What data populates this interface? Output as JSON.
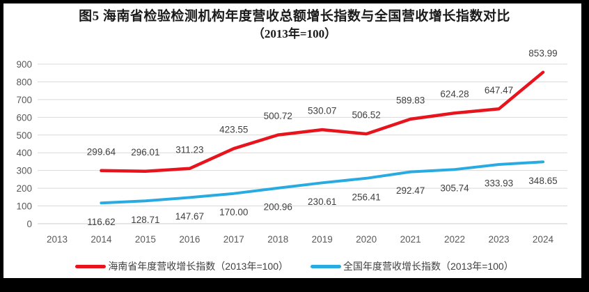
{
  "frame": {
    "border_color": "#000000",
    "chart_background": "#ffffff"
  },
  "title": {
    "line1": "图5  海南省检验检测机构年度营收总额增长指数与全国营收增长指数对比",
    "line2": "（2013年=100）"
  },
  "chart_data": {
    "type": "line",
    "title": "图5 海南省检验检测机构年度营收总额增长指数与全国营收增长指数对比（2013年=100）",
    "categories": [
      "2013",
      "2014",
      "2015",
      "2016",
      "2017",
      "2018",
      "2019",
      "2020",
      "2021",
      "2022",
      "2023",
      "2024"
    ],
    "series": [
      {
        "name": "海南省年度营收增长指数（2013年=100）",
        "color": "#e8141d",
        "stroke_width": 4.5,
        "label_position": "above",
        "years": [
          "2014",
          "2015",
          "2016",
          "2017",
          "2018",
          "2019",
          "2020",
          "2021",
          "2022",
          "2023",
          "2024"
        ],
        "values": [
          299.64,
          296.01,
          311.23,
          423.55,
          500.72,
          530.07,
          506.52,
          589.83,
          624.28,
          647.47,
          853.99
        ]
      },
      {
        "name": "全国年度营收增长指数（2013年=100）",
        "color": "#29abe2",
        "stroke_width": 4,
        "label_position": "below",
        "years": [
          "2014",
          "2015",
          "2016",
          "2017",
          "2018",
          "2019",
          "2020",
          "2021",
          "2022",
          "2023",
          "2024"
        ],
        "values": [
          116.62,
          128.71,
          147.67,
          170.0,
          200.96,
          230.61,
          256.41,
          292.47,
          305.74,
          333.93,
          348.65
        ]
      }
    ],
    "xlabel": "",
    "ylabel": "",
    "ylim": [
      0,
      900
    ],
    "ytick_step": 100,
    "grid": "horizontal",
    "gridline_color": "#d9d9d9",
    "axis_label_color": "#595959",
    "data_label_color": "#404040",
    "legend_position": "bottom"
  }
}
